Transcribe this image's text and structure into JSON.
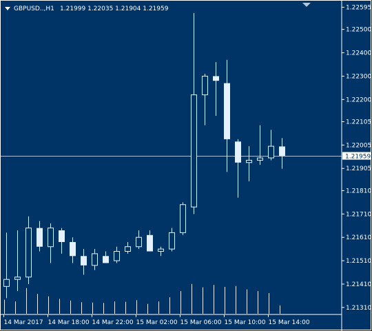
{
  "header": {
    "symbol": "GBPUSD..,H1",
    "ohlc": "1.21999 1.22035 1.21904 1.21959"
  },
  "colors": {
    "background": "#003366",
    "candle": "#e6f0ff",
    "axis": "#ffffff",
    "bid_line": "#a8c0dc"
  },
  "icons": {
    "menu": "triangle-down-icon",
    "shift_marker": "shift-triangle-icon"
  },
  "current_price_label": "1.21959",
  "chart_data": {
    "type": "candlestick",
    "title": "GBPUSD..,H1",
    "ylim": [
      1.2128,
      1.2262
    ],
    "y_ticks": [
      "1.22595",
      "1.22500",
      "1.22400",
      "1.22300",
      "1.22200",
      "1.22105",
      "1.22005",
      "1.21905",
      "1.21810",
      "1.21710",
      "1.21610",
      "1.21510",
      "1.21410",
      "1.21310"
    ],
    "x_ticks": [
      {
        "index": 0,
        "label": "14 Mar 2017"
      },
      {
        "index": 4,
        "label": "14 Mar 18:00"
      },
      {
        "index": 8,
        "label": "14 Mar 22:00"
      },
      {
        "index": 12,
        "label": "15 Mar 02:00"
      },
      {
        "index": 16,
        "label": "15 Mar 06:00"
      },
      {
        "index": 20,
        "label": "15 Mar 10:00"
      },
      {
        "index": 24,
        "label": "15 Mar 14:00"
      }
    ],
    "current_price": 1.21959,
    "grid": false,
    "candles": [
      {
        "open": 1.214,
        "high": 1.2163,
        "low": 1.2135,
        "close": 1.2143
      },
      {
        "open": 1.2143,
        "high": 1.2164,
        "low": 1.2138,
        "close": 1.2144
      },
      {
        "open": 1.2144,
        "high": 1.217,
        "low": 1.2141,
        "close": 1.2165
      },
      {
        "open": 1.2165,
        "high": 1.2168,
        "low": 1.2155,
        "close": 1.2157
      },
      {
        "open": 1.2157,
        "high": 1.2167,
        "low": 1.215,
        "close": 1.2165
      },
      {
        "open": 1.2164,
        "high": 1.2165,
        "low": 1.2154,
        "close": 1.2159
      },
      {
        "open": 1.2159,
        "high": 1.2161,
        "low": 1.215,
        "close": 1.2153
      },
      {
        "open": 1.2153,
        "high": 1.2156,
        "low": 1.2145,
        "close": 1.2149
      },
      {
        "open": 1.2149,
        "high": 1.2156,
        "low": 1.2147,
        "close": 1.2154
      },
      {
        "open": 1.2153,
        "high": 1.2155,
        "low": 1.215,
        "close": 1.215
      },
      {
        "open": 1.2151,
        "high": 1.2157,
        "low": 1.215,
        "close": 1.2155
      },
      {
        "open": 1.2155,
        "high": 1.2159,
        "low": 1.2154,
        "close": 1.2157
      },
      {
        "open": 1.2157,
        "high": 1.2164,
        "low": 1.2156,
        "close": 1.2161
      },
      {
        "open": 1.2162,
        "high": 1.2164,
        "low": 1.2155,
        "close": 1.2155
      },
      {
        "open": 1.2155,
        "high": 1.2157,
        "low": 1.2153,
        "close": 1.2156
      },
      {
        "open": 1.2156,
        "high": 1.2165,
        "low": 1.2155,
        "close": 1.2163
      },
      {
        "open": 1.2163,
        "high": 1.2176,
        "low": 1.2162,
        "close": 1.2175
      },
      {
        "open": 1.2174,
        "high": 1.2257,
        "low": 1.2171,
        "close": 1.2222
      },
      {
        "open": 1.2222,
        "high": 1.2231,
        "low": 1.2209,
        "close": 1.223
      },
      {
        "open": 1.223,
        "high": 1.2236,
        "low": 1.2213,
        "close": 1.2228
      },
      {
        "open": 1.2227,
        "high": 1.2237,
        "low": 1.2189,
        "close": 1.2203
      },
      {
        "open": 1.2202,
        "high": 1.2203,
        "low": 1.2178,
        "close": 1.2193
      },
      {
        "open": 1.2193,
        "high": 1.22,
        "low": 1.2185,
        "close": 1.2194
      },
      {
        "open": 1.2194,
        "high": 1.2209,
        "low": 1.2192,
        "close": 1.2195
      },
      {
        "open": 1.2195,
        "high": 1.2207,
        "low": 1.2194,
        "close": 1.22
      },
      {
        "open": 1.21999,
        "high": 1.22035,
        "low": 1.21904,
        "close": 1.21959
      }
    ],
    "volume_relative": [
      0.34,
      0.3,
      0.62,
      0.48,
      0.42,
      0.36,
      0.32,
      0.28,
      0.27,
      0.26,
      0.3,
      0.29,
      0.33,
      0.24,
      0.3,
      0.4,
      0.55,
      0.72,
      0.64,
      0.7,
      0.65,
      0.67,
      0.59,
      0.55,
      0.5,
      0.2
    ]
  }
}
